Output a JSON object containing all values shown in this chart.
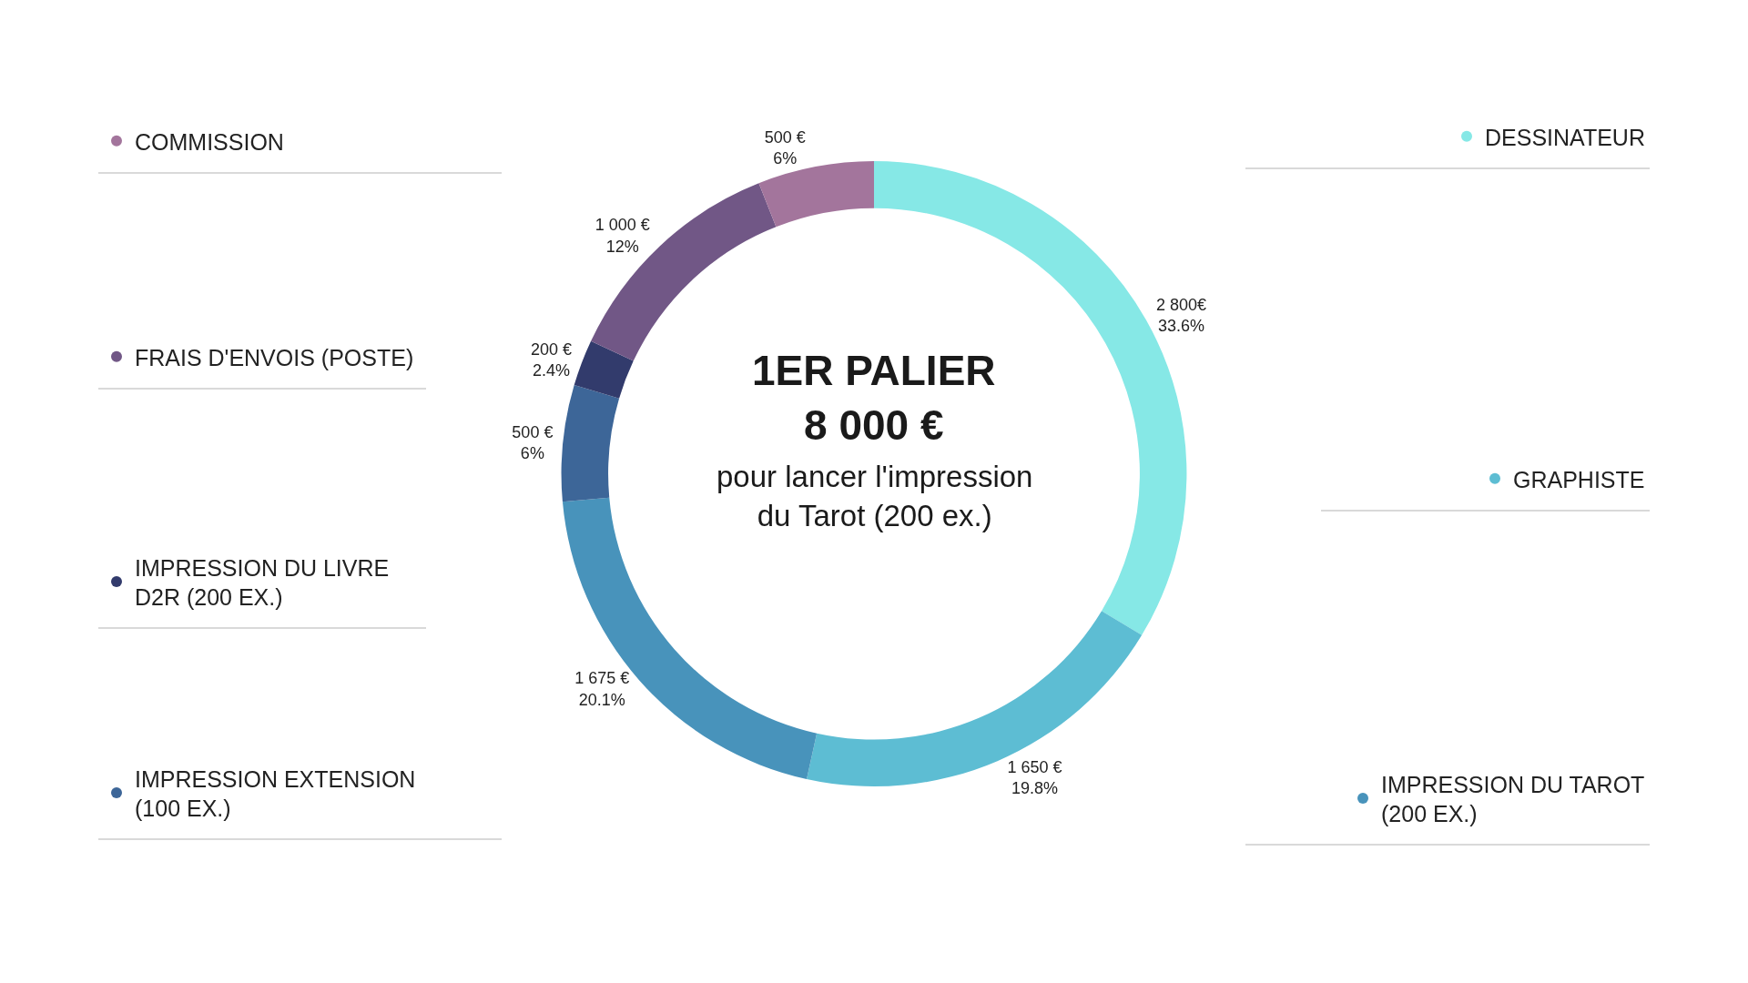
{
  "chart_data": {
    "type": "donut",
    "title": "1ER PALIER\n8 000 €",
    "subtitle": "pour lancer l'impression\ndu Tarot (200 ex.)",
    "categories": [
      "DESSINATEUR",
      "GRAPHISTE",
      "IMPRESSION DU TAROT (200 EX.)",
      "IMPRESSION EXTENSION (100 EX.)",
      "IMPRESSION DU LIVRE D2R (200 EX.)",
      "FRAIS D'ENVOIS (POSTE)",
      "COMMISSION"
    ],
    "legend": "left",
    "values": [
      2800,
      1650,
      1675,
      500,
      200,
      1000,
      500
    ],
    "colors": [
      "#86e8e6",
      "#5dbdd3",
      "#4893bb",
      "#3d6698",
      "#323b6c",
      "#715786",
      "#a3759c"
    ],
    "value_labels": [
      "2 800€\n33.6%",
      "1 650 €\n19.8%",
      "1 675 €\n20.1%",
      "500 €\n6%",
      "200 €\n2.4%",
      "1 000 €\n12%",
      "500 €\n6%"
    ]
  }
}
